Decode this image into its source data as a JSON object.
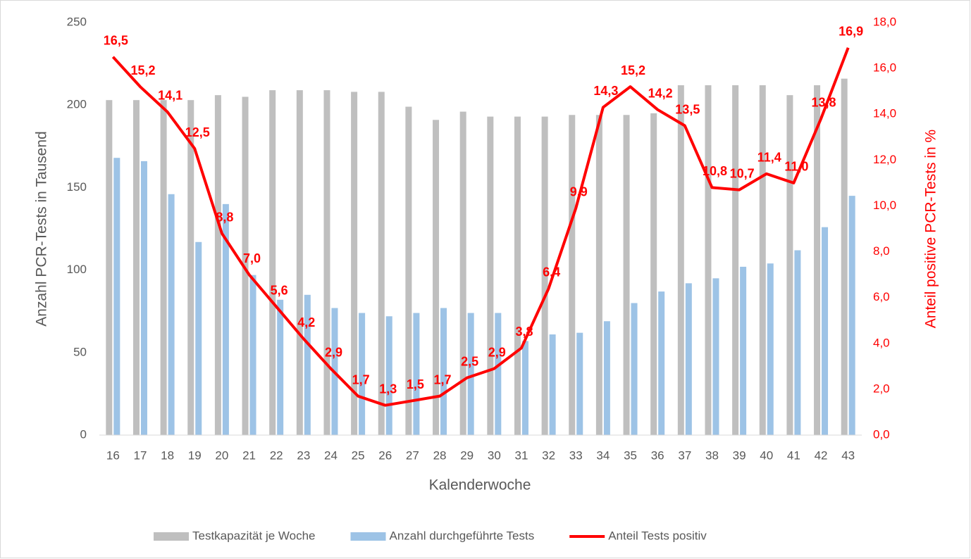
{
  "chart_data": {
    "type": "bar_line",
    "x_label": "Kalenderwoche",
    "y_label": "Anzahl PCR-Tests in Tausend",
    "y2_label": "Anteil positive PCR-Tests in %",
    "categories": [
      "16",
      "17",
      "18",
      "19",
      "20",
      "21",
      "22",
      "23",
      "24",
      "25",
      "26",
      "27",
      "28",
      "29",
      "30",
      "31",
      "32",
      "33",
      "34",
      "35",
      "36",
      "37",
      "38",
      "39",
      "40",
      "41",
      "42",
      "43"
    ],
    "series": [
      {
        "name": "Testkapazität je Woche",
        "type": "bar",
        "color": "#bfbfbf",
        "values": [
          203,
          203,
          203,
          203,
          206,
          205,
          209,
          209,
          209,
          208,
          208,
          199,
          191,
          196,
          193,
          193,
          193,
          194,
          194,
          194,
          195,
          212,
          212,
          212,
          212,
          206,
          212,
          216
        ]
      },
      {
        "name": "Anzahl durchgeführte Tests",
        "type": "bar",
        "color": "#9dc3e6",
        "values": [
          168,
          166,
          146,
          117,
          140,
          97,
          82,
          85,
          77,
          74,
          72,
          74,
          77,
          74,
          74,
          57,
          61,
          62,
          69,
          80,
          87,
          92,
          95,
          102,
          104,
          112,
          126,
          145
        ]
      },
      {
        "name": "Anteil Tests positiv",
        "type": "line",
        "axis": "y2",
        "color": "#ff0000",
        "values": [
          16.5,
          15.2,
          14.1,
          12.5,
          8.8,
          7.0,
          5.6,
          4.2,
          2.9,
          1.7,
          1.3,
          1.5,
          1.7,
          2.5,
          2.9,
          3.8,
          6.4,
          9.9,
          14.3,
          15.2,
          14.2,
          13.5,
          10.8,
          10.7,
          11.4,
          11.0,
          13.8,
          16.9
        ],
        "value_labels": [
          "16,5",
          "15,2",
          "14,1",
          "12,5",
          "8,8",
          "7,0",
          "5,6",
          "4,2",
          "2,9",
          "1,7",
          "1,3",
          "1,5",
          "1,7",
          "2,5",
          "2,9",
          "3,8",
          "6,4",
          "9,9",
          "14,3",
          "15,2",
          "14,2",
          "13,5",
          "10,8",
          "10,7",
          "11,4",
          "11,0",
          "13,8",
          "16,9"
        ]
      }
    ],
    "ylim": [
      0,
      250
    ],
    "yticks": [
      0,
      50,
      100,
      150,
      200,
      250
    ],
    "y2lim": [
      0,
      18
    ],
    "y2ticks": [
      {
        "value": 0,
        "label": "0,0"
      },
      {
        "value": 2,
        "label": "2,0"
      },
      {
        "value": 4,
        "label": "4,0"
      },
      {
        "value": 6,
        "label": "6,0"
      },
      {
        "value": 8,
        "label": "8,0"
      },
      {
        "value": 10,
        "label": "10,0"
      },
      {
        "value": 12,
        "label": "12,0"
      },
      {
        "value": 14,
        "label": "14,0"
      },
      {
        "value": 16,
        "label": "16,0"
      },
      {
        "value": 18,
        "label": "18,0"
      }
    ],
    "legend": "bottom"
  }
}
